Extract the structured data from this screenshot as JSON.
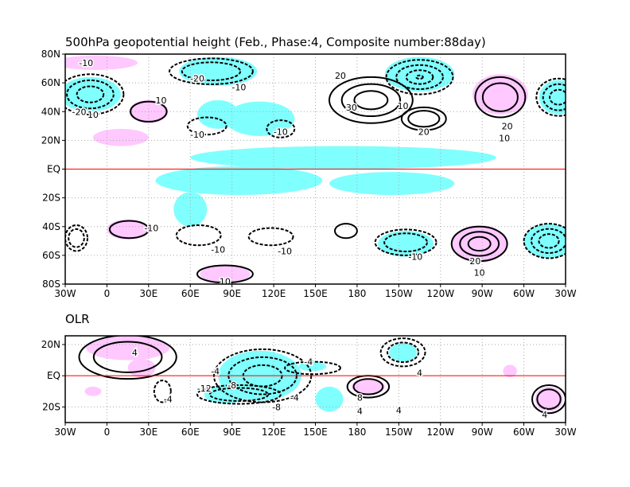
{
  "colors": {
    "positive_shade": "#ffc8ff",
    "negative_shade": "#80ffff",
    "equator_line": "#ff0000",
    "coast": "#a0a0a0"
  },
  "lon_ticks": [
    "30W",
    "0",
    "30E",
    "60E",
    "90E",
    "120E",
    "150E",
    "180",
    "150W",
    "120W",
    "90W",
    "60W",
    "30W"
  ],
  "upper": {
    "title": "500hPa geopotential height (Feb., Phase:4, Composite number:88day)",
    "lat_ticks": [
      "80N",
      "60N",
      "40N",
      "20N",
      "EQ",
      "20S",
      "40S",
      "60S",
      "80S"
    ],
    "lat_range": [
      -80,
      80
    ],
    "lon_range": [
      -30,
      330
    ],
    "shading": [
      {
        "kind": "neg",
        "lon": -12,
        "lat": 52,
        "rlon": 22,
        "rlat": 12
      },
      {
        "kind": "neg",
        "lon": 325,
        "lat": 50,
        "rlon": 14,
        "rlat": 12
      },
      {
        "kind": "pos",
        "lon": -8,
        "lat": 74,
        "rlon": 30,
        "rlat": 5
      },
      {
        "kind": "pos",
        "lon": 30,
        "lat": 40,
        "rlon": 14,
        "rlat": 8
      },
      {
        "kind": "pos",
        "lon": 10,
        "lat": 22,
        "rlon": 20,
        "rlat": 6
      },
      {
        "kind": "neg",
        "lon": 80,
        "lat": 68,
        "rlon": 28,
        "rlat": 10
      },
      {
        "kind": "neg",
        "lon": 80,
        "lat": 38,
        "rlon": 15,
        "rlat": 10
      },
      {
        "kind": "neg",
        "lon": 110,
        "lat": 35,
        "rlon": 25,
        "rlat": 12
      },
      {
        "kind": "neg",
        "lon": 225,
        "lat": 66,
        "rlon": 25,
        "rlat": 12
      },
      {
        "kind": "pos",
        "lon": 283,
        "lat": 52,
        "rlon": 20,
        "rlat": 14
      },
      {
        "kind": "neg",
        "lon": 170,
        "lat": 8,
        "rlon": 110,
        "rlat": 8
      },
      {
        "kind": "neg",
        "lon": 95,
        "lat": -8,
        "rlon": 60,
        "rlat": 10
      },
      {
        "kind": "neg",
        "lon": 60,
        "lat": -28,
        "rlon": 12,
        "rlat": 12
      },
      {
        "kind": "neg",
        "lon": 205,
        "lat": -10,
        "rlon": 45,
        "rlat": 8
      },
      {
        "kind": "pos",
        "lon": 15,
        "lat": -42,
        "rlon": 15,
        "rlat": 7
      },
      {
        "kind": "neg",
        "lon": 215,
        "lat": -52,
        "rlon": 20,
        "rlat": 9
      },
      {
        "kind": "pos",
        "lon": 268,
        "lat": -52,
        "rlon": 20,
        "rlat": 13
      },
      {
        "kind": "neg",
        "lon": 318,
        "lat": -50,
        "rlon": 18,
        "rlat": 12
      },
      {
        "kind": "pos",
        "lon": 85,
        "lat": -73,
        "rlon": 18,
        "rlat": 6
      }
    ],
    "contours": [
      {
        "style": "dash",
        "lon": -12,
        "lat": 52,
        "rlon": 24,
        "rlat": 14,
        "n": 3
      },
      {
        "style": "dash",
        "lon": 325,
        "lat": 50,
        "rlon": 16,
        "rlat": 13,
        "n": 3
      },
      {
        "style": "solid",
        "lon": 30,
        "lat": 40,
        "rlon": 13,
        "rlat": 7,
        "n": 1
      },
      {
        "style": "dash",
        "lon": 75,
        "lat": 68,
        "rlon": 30,
        "rlat": 9,
        "n": 2
      },
      {
        "style": "dash",
        "lon": 72,
        "lat": 30,
        "rlon": 14,
        "rlat": 6,
        "n": 1
      },
      {
        "style": "dash",
        "lon": 125,
        "lat": 28,
        "rlon": 10,
        "rlat": 6,
        "n": 1
      },
      {
        "style": "solid",
        "lon": 190,
        "lat": 48,
        "rlon": 30,
        "rlat": 16,
        "n": 3
      },
      {
        "style": "dash",
        "lon": 225,
        "lat": 64,
        "rlon": 24,
        "rlat": 12,
        "n": 4
      },
      {
        "style": "solid",
        "lon": 228,
        "lat": 35,
        "rlon": 16,
        "rlat": 8,
        "n": 2
      },
      {
        "style": "solid",
        "lon": 283,
        "lat": 50,
        "rlon": 18,
        "rlat": 14,
        "n": 2
      },
      {
        "style": "dash",
        "lon": -22,
        "lat": -48,
        "rlon": 8,
        "rlat": 9,
        "n": 2
      },
      {
        "style": "solid",
        "lon": 16,
        "lat": -42,
        "rlon": 14,
        "rlat": 6,
        "n": 1
      },
      {
        "style": "dash",
        "lon": 66,
        "lat": -46,
        "rlon": 16,
        "rlat": 7,
        "n": 1
      },
      {
        "style": "dash",
        "lon": 118,
        "lat": -47,
        "rlon": 16,
        "rlat": 6,
        "n": 1
      },
      {
        "style": "solid",
        "lon": 172,
        "lat": -43,
        "rlon": 8,
        "rlat": 5,
        "n": 1
      },
      {
        "style": "dash",
        "lon": 215,
        "lat": -51,
        "rlon": 22,
        "rlat": 9,
        "n": 2
      },
      {
        "style": "solid",
        "lon": 268,
        "lat": -52,
        "rlon": 20,
        "rlat": 12,
        "n": 3
      },
      {
        "style": "dash",
        "lon": 318,
        "lat": -50,
        "rlon": 18,
        "rlat": 12,
        "n": 3
      },
      {
        "style": "solid",
        "lon": 85,
        "lat": -73,
        "rlon": 20,
        "rlat": 6,
        "n": 1
      }
    ],
    "contour_labels": [
      {
        "text": "-10",
        "lon": -15,
        "lat": 74
      },
      {
        "text": "-20",
        "lon": -20,
        "lat": 40
      },
      {
        "text": "10",
        "lon": -10,
        "lat": 38
      },
      {
        "text": "10",
        "lon": 39,
        "lat": 48
      },
      {
        "text": "-20",
        "lon": 65,
        "lat": 63
      },
      {
        "text": "-10",
        "lon": 95,
        "lat": 57
      },
      {
        "text": "-10",
        "lon": 65,
        "lat": 24
      },
      {
        "text": "-10",
        "lon": 125,
        "lat": 26
      },
      {
        "text": "20",
        "lon": 168,
        "lat": 65
      },
      {
        "text": "30",
        "lon": 176,
        "lat": 43
      },
      {
        "text": "10",
        "lon": 213,
        "lat": 44
      },
      {
        "text": "20",
        "lon": 228,
        "lat": 26
      },
      {
        "text": "20",
        "lon": 288,
        "lat": 30
      },
      {
        "text": "10",
        "lon": 286,
        "lat": 25
      },
      {
        "text": "-10",
        "lon": 32,
        "lat": -41
      },
      {
        "text": "-10",
        "lon": 80,
        "lat": -56
      },
      {
        "text": "-10",
        "lon": 128,
        "lat": -57
      },
      {
        "text": "-10",
        "lon": 222,
        "lat": -61
      },
      {
        "text": "20",
        "lon": 265,
        "lat": -64
      },
      {
        "text": "10",
        "lon": 268,
        "lat": -67
      },
      {
        "text": "10",
        "lon": 85,
        "lat": -78
      }
    ]
  },
  "lower": {
    "title": "OLR",
    "lat_ticks": [
      "20N",
      "EQ",
      "20S"
    ],
    "shading": [
      {
        "kind": "pos",
        "lon": 15,
        "lat": 18,
        "rlon": 30,
        "rlat": 8
      },
      {
        "kind": "pos",
        "lon": 25,
        "lat": 5,
        "rlon": 10,
        "rlat": 6
      },
      {
        "kind": "pos",
        "lon": -10,
        "lat": -10,
        "rlon": 6,
        "rlat": 3
      },
      {
        "kind": "neg",
        "lon": 110,
        "lat": 0,
        "rlon": 30,
        "rlat": 16
      },
      {
        "kind": "neg",
        "lon": 85,
        "lat": -12,
        "rlon": 15,
        "rlat": 6
      },
      {
        "kind": "neg",
        "lon": 160,
        "lat": -15,
        "rlon": 10,
        "rlat": 8
      },
      {
        "kind": "neg",
        "lon": 148,
        "lat": 6,
        "rlon": 10,
        "rlat": 3
      },
      {
        "kind": "neg",
        "lon": 213,
        "lat": 15,
        "rlon": 10,
        "rlat": 6
      },
      {
        "kind": "pos",
        "lon": 188,
        "lat": -7,
        "rlon": 12,
        "rlat": 5
      },
      {
        "kind": "pos",
        "lon": 290,
        "lat": 3,
        "rlon": 5,
        "rlat": 4
      },
      {
        "kind": "pos",
        "lon": 318,
        "lat": -15,
        "rlon": 10,
        "rlat": 8
      }
    ],
    "contours": [
      {
        "style": "solid",
        "lon": 15,
        "lat": 12,
        "rlon": 35,
        "rlat": 14,
        "n": 2
      },
      {
        "style": "dash",
        "lon": 112,
        "lat": 0,
        "rlon": 35,
        "rlat": 17,
        "n": 3
      },
      {
        "style": "dash",
        "lon": 95,
        "lat": -12,
        "rlon": 30,
        "rlat": 6,
        "n": 2
      },
      {
        "style": "dash",
        "lon": 148,
        "lat": 5,
        "rlon": 20,
        "rlat": 4,
        "n": 1
      },
      {
        "style": "dash",
        "lon": 213,
        "lat": 15,
        "rlon": 16,
        "rlat": 9,
        "n": 2
      },
      {
        "style": "solid",
        "lon": 188,
        "lat": -7,
        "rlon": 15,
        "rlat": 7,
        "n": 2
      },
      {
        "style": "solid",
        "lon": 318,
        "lat": -15,
        "rlon": 12,
        "rlat": 9,
        "n": 2
      },
      {
        "style": "dash",
        "lon": 40,
        "lat": -10,
        "rlon": 6,
        "rlat": 7,
        "n": 1
      }
    ],
    "contour_labels": [
      {
        "text": "4",
        "lon": 20,
        "lat": 15
      },
      {
        "text": "-4",
        "lon": 78,
        "lat": 3
      },
      {
        "text": "-4",
        "lon": 145,
        "lat": 9
      },
      {
        "text": "-12",
        "lon": 70,
        "lat": -8
      },
      {
        "text": "-8",
        "lon": 90,
        "lat": -6
      },
      {
        "text": "-4",
        "lon": 44,
        "lat": -15
      },
      {
        "text": "-4",
        "lon": 135,
        "lat": -14
      },
      {
        "text": "-8",
        "lon": 122,
        "lat": -20
      },
      {
        "text": "8",
        "lon": 182,
        "lat": -14
      },
      {
        "text": "4",
        "lon": 182,
        "lat": -18
      },
      {
        "text": "4",
        "lon": 210,
        "lat": -22
      },
      {
        "text": "4",
        "lon": 225,
        "lat": 2
      },
      {
        "text": "4",
        "lon": 315,
        "lat": -25
      }
    ]
  }
}
